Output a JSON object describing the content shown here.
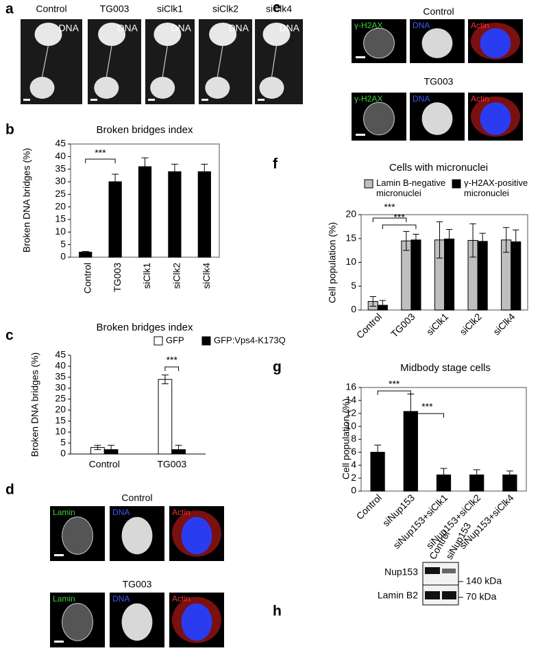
{
  "panel_labels": [
    "a",
    "b",
    "c",
    "d",
    "e",
    "f",
    "g",
    "h"
  ],
  "panel_a": {
    "titles": [
      "Control",
      "TG003",
      "siClk1",
      "siClk2",
      "siClk4"
    ],
    "channel": "DNA"
  },
  "panel_d": {
    "rows": [
      {
        "title": "Control",
        "channels": [
          "Lamin",
          "DNA",
          "Actin"
        ]
      },
      {
        "title": "TG003",
        "channels": [
          "Lamin",
          "DNA",
          "Actin"
        ]
      }
    ]
  },
  "panel_e": {
    "rows": [
      {
        "title": "Control",
        "channels": [
          "γ-H2AX",
          "DNA",
          "Actin"
        ]
      },
      {
        "title": "TG003",
        "channels": [
          "γ-H2AX",
          "DNA",
          "Actin"
        ]
      }
    ]
  },
  "panel_h": {
    "lanes": [
      "Control",
      "siNup153"
    ],
    "bands": [
      "Nup153",
      "Lamin B2"
    ],
    "markers": [
      "140 kDa",
      "70 kDa"
    ]
  },
  "chart_data": [
    {
      "type": "bar",
      "title": "Broken bridges index",
      "y_label": "Broken DNA bridges (%)",
      "categories": [
        "Control",
        "TG003",
        "siClk1",
        "siClk2",
        "siClk4"
      ],
      "series": [
        {
          "name": null,
          "color": "#000000",
          "values": [
            2,
            30,
            36,
            34,
            34
          ],
          "errors": [
            0.3,
            3,
            3.5,
            3,
            3
          ]
        }
      ],
      "ylim": [
        0,
        45
      ],
      "yticks": [
        0,
        5,
        10,
        15,
        20,
        25,
        30,
        35,
        40,
        45
      ],
      "annotations": [
        "***"
      ]
    },
    {
      "type": "bar",
      "title": "Broken bridges index",
      "y_label": "Broken DNA bridges (%)",
      "categories": [
        "Control",
        "TG003"
      ],
      "series": [
        {
          "name": "GFP",
          "color": "#ffffff",
          "values": [
            3,
            34
          ],
          "errors": [
            1,
            2
          ]
        },
        {
          "name": "GFP:Vps4-K173Q",
          "color": "#000000",
          "values": [
            2,
            2
          ],
          "errors": [
            2,
            2
          ]
        }
      ],
      "ylim": [
        0,
        45
      ],
      "yticks": [
        0,
        5,
        10,
        15,
        20,
        25,
        30,
        35,
        40,
        45
      ],
      "annotations": [
        "***"
      ]
    },
    {
      "type": "bar",
      "title": "Cells with micronuclei",
      "y_label": "Cell population (%)",
      "categories": [
        "Control",
        "TG003",
        "siClk1",
        "siClk2",
        "siClk4"
      ],
      "series": [
        {
          "name": "Lamin B-negative micronuclei",
          "color": "#bfbfbf",
          "values": [
            1.8,
            14.5,
            14.7,
            14.6,
            14.7
          ],
          "errors": [
            1,
            2,
            3.8,
            3.5,
            2.6
          ]
        },
        {
          "name": "γ-H2AX-positive micronuclei",
          "color": "#000000",
          "values": [
            1,
            14.7,
            14.9,
            14.4,
            14.3
          ],
          "errors": [
            1,
            1.2,
            2,
            1.7,
            2.5
          ]
        }
      ],
      "ylim": [
        0,
        20
      ],
      "yticks": [
        0,
        5,
        10,
        15,
        20
      ],
      "annotations": [
        "***",
        "***"
      ]
    },
    {
      "type": "bar",
      "title": "Midbody stage cells",
      "y_label": "Cell population (%)",
      "categories": [
        "Control",
        "siNup153",
        "siNup153+siClk1",
        "siNup153+siClk2",
        "siNup153+siClk4"
      ],
      "series": [
        {
          "name": null,
          "color": "#000000",
          "values": [
            6,
            12.3,
            2.5,
            2.5,
            2.5
          ],
          "errors": [
            1.1,
            2.7,
            1,
            0.8,
            0.6
          ]
        }
      ],
      "ylim": [
        0,
        16
      ],
      "yticks": [
        0,
        2,
        4,
        6,
        8,
        10,
        12,
        14,
        16
      ],
      "annotations": [
        "***",
        "***"
      ]
    }
  ]
}
